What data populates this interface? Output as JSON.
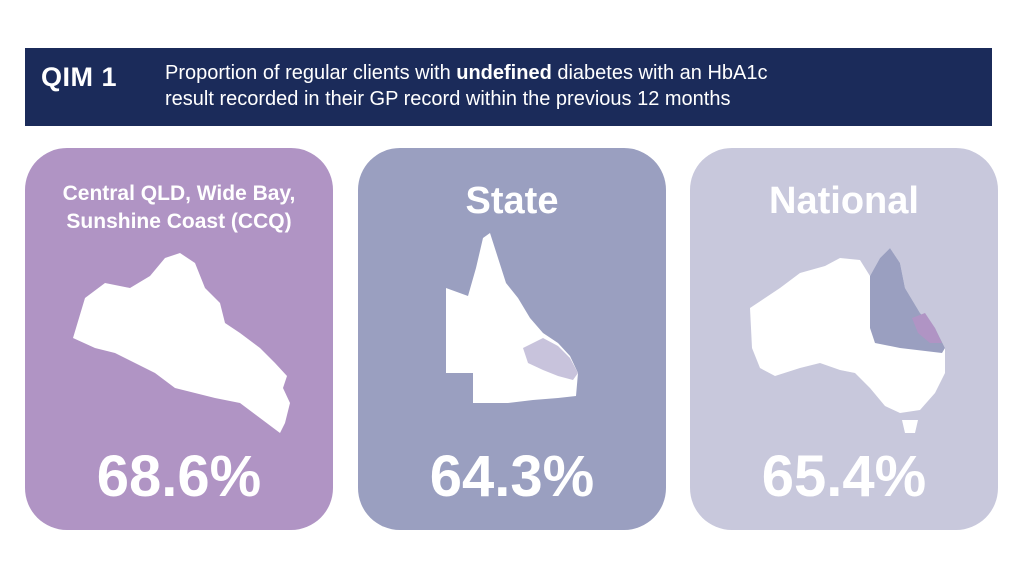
{
  "header": {
    "badge": "QIM 1",
    "description_parts": [
      "Proportion of regular clients with ",
      "undefined",
      " diabetes with an HbA1c",
      "result recorded in their GP record within the previous 12 months"
    ]
  },
  "cards": [
    {
      "title": "Central QLD, Wide Bay, Sunshine Coast (CCQ)",
      "value": "68.6%"
    },
    {
      "title": "State",
      "value": "64.3%"
    },
    {
      "title": "National",
      "value": "65.4%"
    }
  ]
}
